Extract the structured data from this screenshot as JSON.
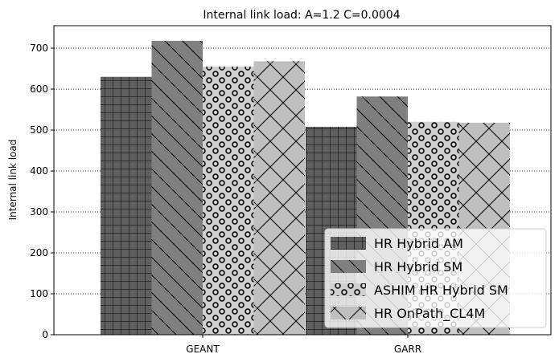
{
  "chart_data": {
    "type": "bar",
    "title": "Internal link load: A=1.2 C=0.0004",
    "xlabel": "",
    "ylabel": "Internal link load",
    "categories": [
      "GEANT",
      "GARR"
    ],
    "ylim": [
      0,
      755
    ],
    "yticks": [
      0,
      100,
      200,
      300,
      400,
      500,
      600,
      700
    ],
    "grid": "y-dotted",
    "legend_position": "lower-right",
    "series": [
      {
        "name": "HR Hybrid AM",
        "values": [
          630,
          508
        ],
        "color": "#5f5f5f",
        "hatch": "grid"
      },
      {
        "name": "HR Hybrid SM",
        "values": [
          718,
          582
        ],
        "color": "#7f7f7f",
        "hatch": "diagonal"
      },
      {
        "name": "ASHIM HR Hybrid SM",
        "values": [
          655,
          520
        ],
        "color": "#d0d0d0",
        "hatch": "circles"
      },
      {
        "name": "HR OnPath_CL4M",
        "values": [
          668,
          518
        ],
        "color": "#bfbfbf",
        "hatch": "cross"
      }
    ]
  }
}
